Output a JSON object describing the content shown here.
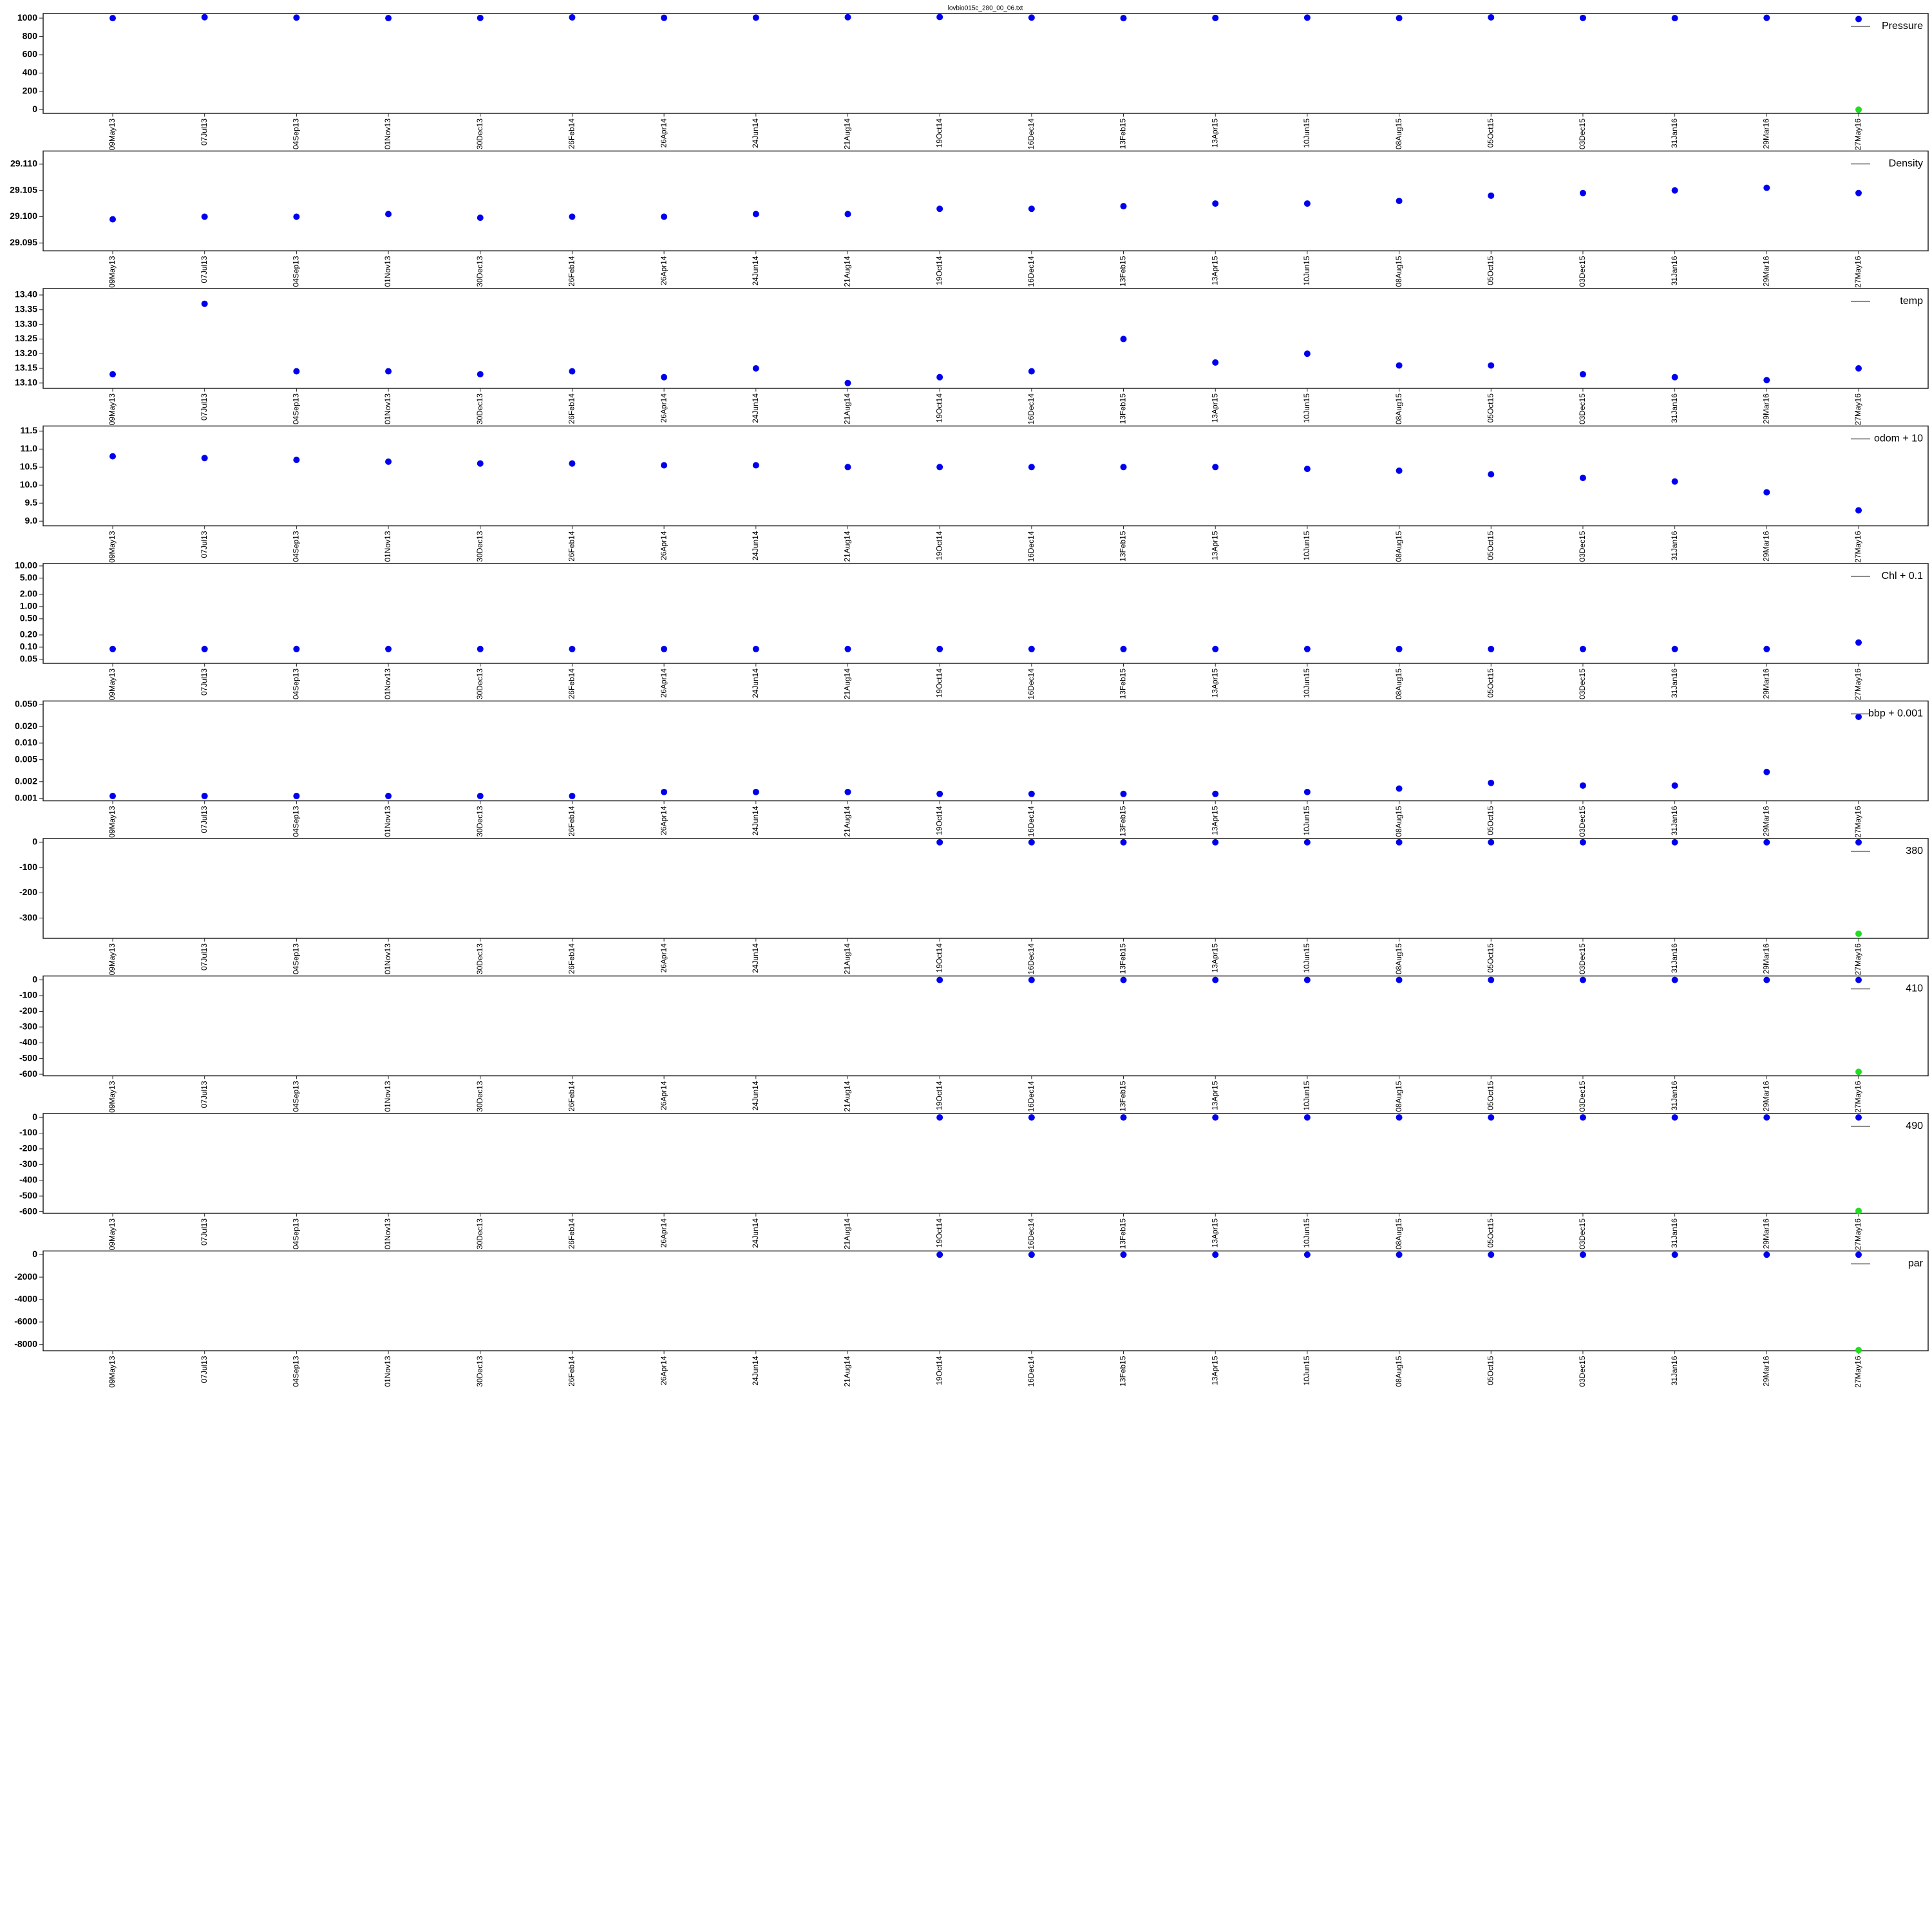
{
  "chart_data": [
    {
      "type": "scatter",
      "title": "lovbio015c_280_00_06.txt",
      "categories": [
        "09May13",
        "07Jul13",
        "04Sep13",
        "01Nov13",
        "30Dec13",
        "26Feb14",
        "26Apr14",
        "24Jun14",
        "21Aug14",
        "19Oct14",
        "16Dec14",
        "13Feb15",
        "13Apr15",
        "10Jun15",
        "08Aug15",
        "05Oct15",
        "03Dec15",
        "31Jan16",
        "29Mar16",
        "27May16"
      ],
      "ylim": [
        -40,
        1050
      ],
      "yticks": [
        0,
        200,
        400,
        600,
        800,
        1000
      ],
      "legend": "top-right",
      "series": [
        {
          "name": "Pressure",
          "color": "#0000ee",
          "values": [
            1000,
            1010,
            1005,
            1000,
            1002,
            1008,
            1003,
            1005,
            1010,
            1012,
            1005,
            1000,
            1002,
            1005,
            1000,
            1008,
            1002,
            1000,
            1003,
            990
          ]
        },
        {
          "color": "#22dd22",
          "values": [
            null,
            null,
            null,
            null,
            null,
            null,
            null,
            null,
            null,
            null,
            null,
            null,
            null,
            null,
            null,
            null,
            null,
            null,
            null,
            0
          ]
        }
      ]
    },
    {
      "type": "scatter",
      "categories": [
        "09May13",
        "07Jul13",
        "04Sep13",
        "01Nov13",
        "30Dec13",
        "26Feb14",
        "26Apr14",
        "24Jun14",
        "21Aug14",
        "19Oct14",
        "16Dec14",
        "13Feb15",
        "13Apr15",
        "10Jun15",
        "08Aug15",
        "05Oct15",
        "03Dec15",
        "31Jan16",
        "29Mar16",
        "27May16"
      ],
      "ylim": [
        29.0935,
        29.1125
      ],
      "yticks": [
        {
          "value": 29.095,
          "label": "29.095"
        },
        {
          "value": 29.1,
          "label": "29.100"
        },
        {
          "value": 29.105,
          "label": "29.105"
        },
        {
          "value": 29.11,
          "label": "29.110"
        }
      ],
      "legend": "top-right",
      "series": [
        {
          "name": "Density",
          "color": "#0000ee",
          "values": [
            29.0995,
            29.1,
            29.1,
            29.1005,
            29.0998,
            29.1,
            29.1,
            29.1005,
            29.1005,
            29.1015,
            29.1015,
            29.102,
            29.1025,
            29.1025,
            29.103,
            29.104,
            29.1045,
            29.105,
            29.1055,
            29.1045
          ]
        }
      ]
    },
    {
      "type": "scatter",
      "categories": [
        "09May13",
        "07Jul13",
        "04Sep13",
        "01Nov13",
        "30Dec13",
        "26Feb14",
        "26Apr14",
        "24Jun14",
        "21Aug14",
        "19Oct14",
        "16Dec14",
        "13Feb15",
        "13Apr15",
        "10Jun15",
        "08Aug15",
        "05Oct15",
        "03Dec15",
        "31Jan16",
        "29Mar16",
        "27May16"
      ],
      "ylim": [
        13.082,
        13.422
      ],
      "yticks": [
        {
          "value": 13.1,
          "label": "13.10"
        },
        13.15,
        {
          "value": 13.2,
          "label": "13.20"
        },
        13.25,
        {
          "value": 13.3,
          "label": "13.30"
        },
        13.35,
        {
          "value": 13.4,
          "label": "13.40"
        }
      ],
      "legend": "top-right",
      "series": [
        {
          "name": "temp",
          "color": "#0000ee",
          "values": [
            13.13,
            13.37,
            13.14,
            13.14,
            13.13,
            13.14,
            13.12,
            13.15,
            13.1,
            13.12,
            13.14,
            13.25,
            13.17,
            13.2,
            13.16,
            13.16,
            13.13,
            13.12,
            13.11,
            13.15
          ]
        }
      ]
    },
    {
      "type": "scatter",
      "categories": [
        "09May13",
        "07Jul13",
        "04Sep13",
        "01Nov13",
        "30Dec13",
        "26Feb14",
        "26Apr14",
        "24Jun14",
        "21Aug14",
        "19Oct14",
        "16Dec14",
        "13Feb15",
        "13Apr15",
        "10Jun15",
        "08Aug15",
        "05Oct15",
        "03Dec15",
        "31Jan16",
        "29Mar16",
        "27May16"
      ],
      "ylim": [
        8.87,
        11.64
      ],
      "yticks": [
        {
          "value": 9,
          "label": "9.0"
        },
        9.5,
        {
          "value": 10,
          "label": "10.0"
        },
        10.5,
        {
          "value": 11,
          "label": "11.0"
        },
        11.5
      ],
      "legend": "top-right",
      "series": [
        {
          "name": "odom + 10",
          "color": "#0000ee",
          "values": [
            10.8,
            10.75,
            10.7,
            10.65,
            10.6,
            10.6,
            10.55,
            10.55,
            10.5,
            10.5,
            10.5,
            10.5,
            10.5,
            10.45,
            10.4,
            10.3,
            10.2,
            10.1,
            9.8,
            9.3
          ]
        }
      ]
    },
    {
      "type": "scatter",
      "log": true,
      "categories": [
        "09May13",
        "07Jul13",
        "04Sep13",
        "01Nov13",
        "30Dec13",
        "26Feb14",
        "26Apr14",
        "24Jun14",
        "21Aug14",
        "19Oct14",
        "16Dec14",
        "13Feb15",
        "13Apr15",
        "10Jun15",
        "08Aug15",
        "05Oct15",
        "03Dec15",
        "31Jan16",
        "29Mar16",
        "27May16"
      ],
      "ylim": [
        0.04,
        11.5
      ],
      "yticks": [
        0.05,
        {
          "value": 0.1,
          "label": "0.10"
        },
        {
          "value": 0.2,
          "label": "0.20"
        },
        {
          "value": 0.5,
          "label": "0.50"
        },
        {
          "value": 1,
          "label": "1.00"
        },
        {
          "value": 2,
          "label": "2.00"
        },
        {
          "value": 5,
          "label": "5.00"
        },
        {
          "value": 10,
          "label": "10.00"
        }
      ],
      "legend": "top-right",
      "series": [
        {
          "name": "Chl + 0.1",
          "color": "#0000ee",
          "values": [
            0.09,
            0.09,
            0.09,
            0.09,
            0.09,
            0.09,
            0.09,
            0.09,
            0.09,
            0.09,
            0.09,
            0.09,
            0.09,
            0.09,
            0.09,
            0.09,
            0.09,
            0.09,
            0.09,
            0.13
          ]
        }
      ]
    },
    {
      "type": "scatter",
      "log": true,
      "categories": [
        "09May13",
        "07Jul13",
        "04Sep13",
        "01Nov13",
        "30Dec13",
        "26Feb14",
        "26Apr14",
        "24Jun14",
        "21Aug14",
        "19Oct14",
        "16Dec14",
        "13Feb15",
        "13Apr15",
        "10Jun15",
        "08Aug15",
        "05Oct15",
        "03Dec15",
        "31Jan16",
        "29Mar16",
        "27May16"
      ],
      "ylim": [
        0.0009,
        0.058
      ],
      "yticks": [
        0.001,
        0.002,
        0.005,
        {
          "value": 0.01,
          "label": "0.010"
        },
        {
          "value": 0.02,
          "label": "0.020"
        },
        {
          "value": 0.05,
          "label": "0.050"
        }
      ],
      "legend": "top-right",
      "series": [
        {
          "name": "bbp + 0.001",
          "color": "#0000ee",
          "values": [
            0.0011,
            0.0011,
            0.0011,
            0.0011,
            0.0011,
            0.0011,
            0.0013,
            0.0013,
            0.0013,
            0.0012,
            0.0012,
            0.0012,
            0.0012,
            0.0013,
            0.0015,
            0.0019,
            0.0017,
            0.0017,
            0.003,
            0.03
          ]
        }
      ]
    },
    {
      "type": "scatter",
      "categories": [
        "09May13",
        "07Jul13",
        "04Sep13",
        "01Nov13",
        "30Dec13",
        "26Feb14",
        "26Apr14",
        "24Jun14",
        "21Aug14",
        "19Oct14",
        "16Dec14",
        "13Feb15",
        "13Apr15",
        "10Jun15",
        "08Aug15",
        "05Oct15",
        "03Dec15",
        "31Jan16",
        "29Mar16",
        "27May16"
      ],
      "ylim": [
        -380,
        15
      ],
      "yticks": [
        -300,
        -200,
        -100,
        0
      ],
      "legend": "top-right",
      "series": [
        {
          "name": "380",
          "color": "#0000ee",
          "values": [
            null,
            null,
            null,
            null,
            null,
            null,
            null,
            null,
            null,
            0,
            0,
            0,
            0,
            0,
            0,
            0,
            0,
            0,
            0,
            0
          ]
        },
        {
          "color": "#22dd22",
          "values": [
            null,
            null,
            null,
            null,
            null,
            null,
            null,
            null,
            null,
            null,
            null,
            null,
            null,
            null,
            null,
            null,
            null,
            null,
            null,
            -362
          ]
        }
      ]
    },
    {
      "type": "scatter",
      "categories": [
        "09May13",
        "07Jul13",
        "04Sep13",
        "01Nov13",
        "30Dec13",
        "26Feb14",
        "26Apr14",
        "24Jun14",
        "21Aug14",
        "19Oct14",
        "16Dec14",
        "13Feb15",
        "13Apr15",
        "10Jun15",
        "08Aug15",
        "05Oct15",
        "03Dec15",
        "31Jan16",
        "29Mar16",
        "27May16"
      ],
      "ylim": [
        -610,
        25
      ],
      "yticks": [
        -600,
        -500,
        -400,
        -300,
        -200,
        -100,
        0
      ],
      "legend": "top-right",
      "series": [
        {
          "name": "410",
          "color": "#0000ee",
          "values": [
            null,
            null,
            null,
            null,
            null,
            null,
            null,
            null,
            null,
            0,
            0,
            0,
            0,
            0,
            0,
            0,
            0,
            0,
            0,
            0
          ]
        },
        {
          "color": "#22dd22",
          "values": [
            null,
            null,
            null,
            null,
            null,
            null,
            null,
            null,
            null,
            null,
            null,
            null,
            null,
            null,
            null,
            null,
            null,
            null,
            null,
            -585
          ]
        }
      ]
    },
    {
      "type": "scatter",
      "categories": [
        "09May13",
        "07Jul13",
        "04Sep13",
        "01Nov13",
        "30Dec13",
        "26Feb14",
        "26Apr14",
        "24Jun14",
        "21Aug14",
        "19Oct14",
        "16Dec14",
        "13Feb15",
        "13Apr15",
        "10Jun15",
        "08Aug15",
        "05Oct15",
        "03Dec15",
        "31Jan16",
        "29Mar16",
        "27May16"
      ],
      "ylim": [
        -610,
        25
      ],
      "yticks": [
        -600,
        -500,
        -400,
        -300,
        -200,
        -100,
        0
      ],
      "legend": "top-right",
      "series": [
        {
          "name": "490",
          "color": "#0000ee",
          "values": [
            null,
            null,
            null,
            null,
            null,
            null,
            null,
            null,
            null,
            0,
            0,
            0,
            0,
            0,
            0,
            0,
            0,
            0,
            0,
            0
          ]
        },
        {
          "color": "#22dd22",
          "values": [
            null,
            null,
            null,
            null,
            null,
            null,
            null,
            null,
            null,
            null,
            null,
            null,
            null,
            null,
            null,
            null,
            null,
            null,
            null,
            -595
          ]
        }
      ]
    },
    {
      "type": "scatter",
      "categories": [
        "09May13",
        "07Jul13",
        "04Sep13",
        "01Nov13",
        "30Dec13",
        "26Feb14",
        "26Apr14",
        "24Jun14",
        "21Aug14",
        "19Oct14",
        "16Dec14",
        "13Feb15",
        "13Apr15",
        "10Jun15",
        "08Aug15",
        "05Oct15",
        "03Dec15",
        "31Jan16",
        "29Mar16",
        "27May16"
      ],
      "ylim": [
        -8560,
        330
      ],
      "yticks": [
        -8000,
        -6000,
        -4000,
        -2000,
        0
      ],
      "legend": "top-right",
      "series": [
        {
          "name": "par",
          "color": "#0000ee",
          "values": [
            null,
            null,
            null,
            null,
            null,
            null,
            null,
            null,
            null,
            0,
            0,
            0,
            0,
            0,
            0,
            0,
            0,
            0,
            0,
            0
          ]
        },
        {
          "color": "#22dd22",
          "values": [
            null,
            null,
            null,
            null,
            null,
            null,
            null,
            null,
            null,
            null,
            null,
            null,
            null,
            null,
            null,
            null,
            null,
            null,
            null,
            -8500
          ]
        }
      ]
    }
  ]
}
